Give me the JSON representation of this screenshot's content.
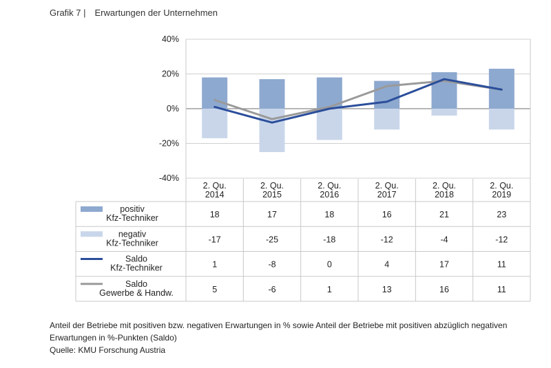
{
  "header": {
    "label": "Grafik 7 |",
    "title": "Erwartungen der Unternehmen"
  },
  "chart_data": {
    "type": "bar",
    "categories": [
      [
        "2. Qu.",
        "2014"
      ],
      [
        "2. Qu.",
        "2015"
      ],
      [
        "2. Qu.",
        "2016"
      ],
      [
        "2. Qu.",
        "2017"
      ],
      [
        "2. Qu.",
        "2018"
      ],
      [
        "2. Qu.",
        "2019"
      ]
    ],
    "ylim": [
      -40,
      40
    ],
    "yticks": [
      40,
      20,
      0,
      -20,
      -40
    ],
    "ytick_labels": [
      "40%",
      "20%",
      "0%",
      "-20%",
      "-40%"
    ],
    "series": [
      {
        "name": [
          "positiv",
          "Kfz-Techniker"
        ],
        "kind": "bar",
        "color": "#8EA9CF",
        "values": [
          18,
          17,
          18,
          16,
          21,
          23
        ]
      },
      {
        "name": [
          "negativ",
          "Kfz-Techniker"
        ],
        "kind": "bar",
        "color": "#C9D6EA",
        "values": [
          -17,
          -25,
          -18,
          -12,
          -4,
          -12
        ]
      },
      {
        "name": [
          "Saldo",
          "Kfz-Techniker"
        ],
        "kind": "line",
        "color": "#2B4E9B",
        "values": [
          1,
          -8,
          0,
          4,
          17,
          11
        ]
      },
      {
        "name": [
          "Saldo",
          "Gewerbe & Handw."
        ],
        "kind": "line",
        "color": "#9A9A9A",
        "values": [
          5,
          -6,
          1,
          13,
          16,
          11
        ]
      }
    ]
  },
  "caption": {
    "text": "Anteil der Betriebe mit positiven bzw. negativen Erwartungen in % sowie Anteil der Betriebe mit positiven abzüglich negativen Erwartungen in %-Punkten (Saldo)",
    "source": "Quelle: KMU Forschung Austria"
  }
}
